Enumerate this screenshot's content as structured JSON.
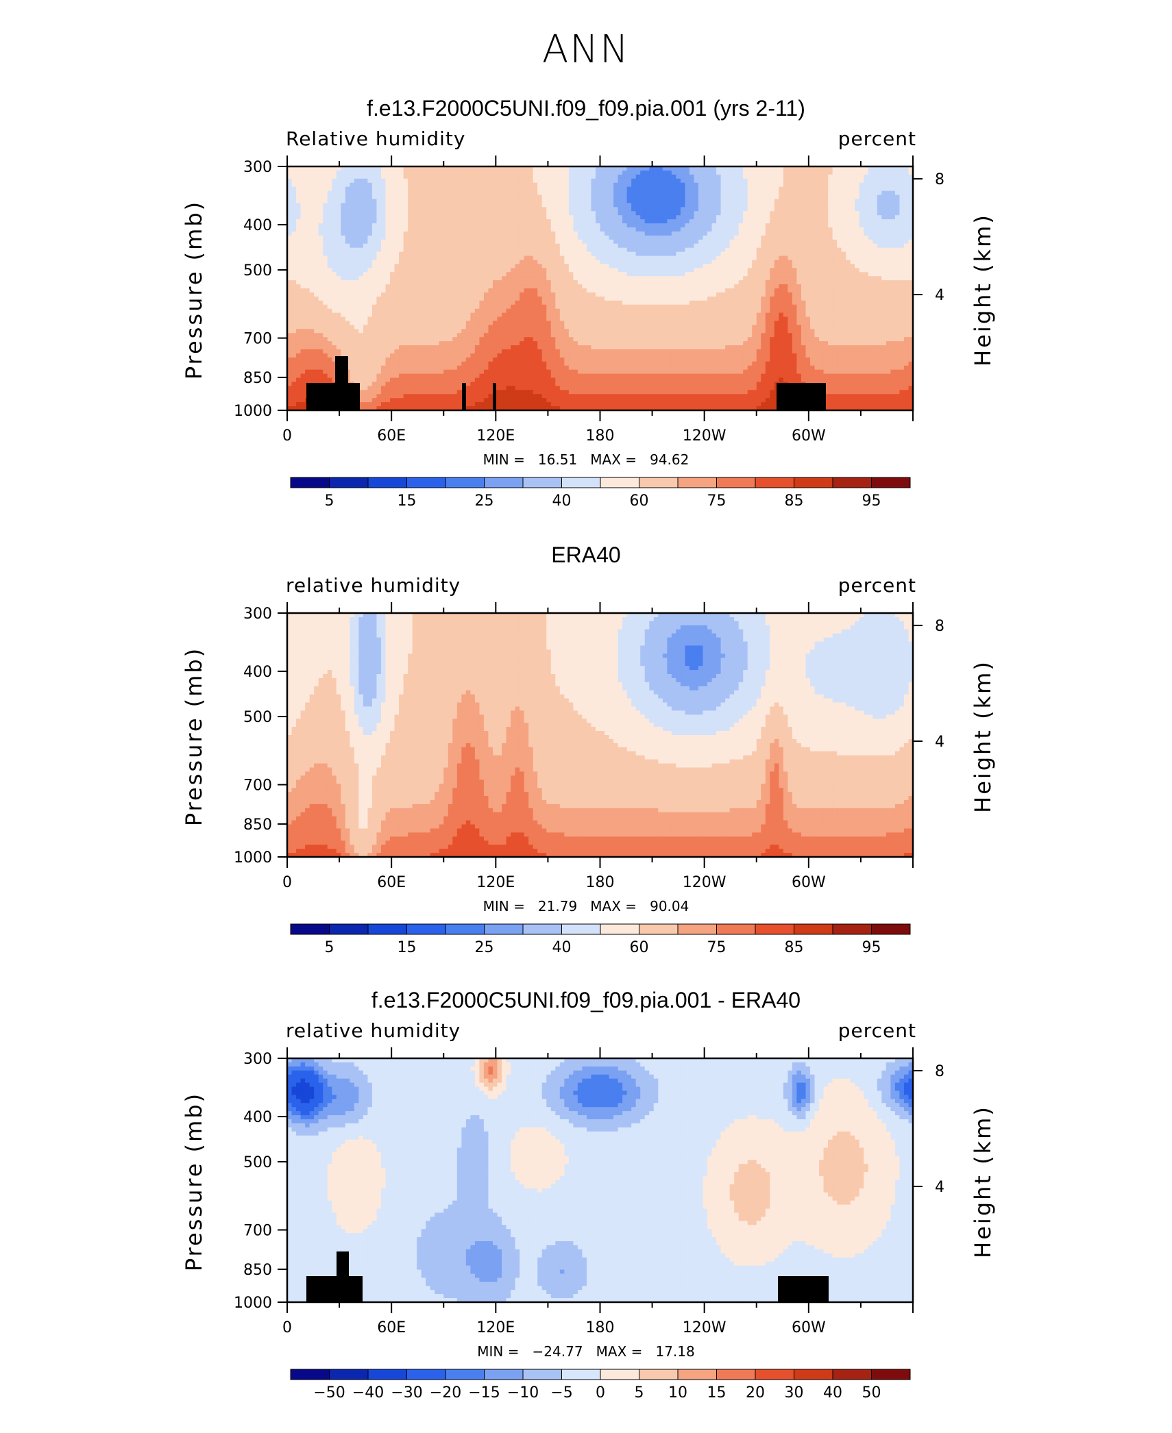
{
  "figure_title": "ANN",
  "chart_data": [
    {
      "type": "heatmap",
      "title": "f.e13.F2000C5UNI.f09_f09.pia.001 (yrs 2-11)",
      "variable_label": "Relative humidity",
      "units_label": "percent",
      "ylabel": "Pressure (mb)",
      "ylabel_right": "Height (km)",
      "x_ticks": [
        "0",
        "60E",
        "120E",
        "180",
        "120W",
        "60W"
      ],
      "y_ticks": [
        "300",
        "400",
        "500",
        "700",
        "850",
        "1000"
      ],
      "y_right_ticks": [
        "8",
        "4"
      ],
      "stats": {
        "min_label": "MIN =",
        "min": "16.51",
        "max_label": "MAX =",
        "max": "94.62"
      },
      "colorbar_labels": [
        "5",
        "15",
        "25",
        "40",
        "60",
        "75",
        "85",
        "95"
      ],
      "ylim": [
        1000,
        300
      ],
      "field_min": 16.51,
      "field_max": 94.62
    },
    {
      "type": "heatmap",
      "title": "ERA40",
      "variable_label": "relative humidity",
      "units_label": "percent",
      "ylabel": "Pressure (mb)",
      "ylabel_right": "Height (km)",
      "x_ticks": [
        "0",
        "60E",
        "120E",
        "180",
        "120W",
        "60W"
      ],
      "y_ticks": [
        "300",
        "400",
        "500",
        "700",
        "850",
        "1000"
      ],
      "y_right_ticks": [
        "8",
        "4"
      ],
      "stats": {
        "min_label": "MIN =",
        "min": "21.79",
        "max_label": "MAX =",
        "max": "90.04"
      },
      "colorbar_labels": [
        "5",
        "15",
        "25",
        "40",
        "60",
        "75",
        "85",
        "95"
      ],
      "ylim": [
        1000,
        300
      ],
      "field_min": 21.79,
      "field_max": 90.04
    },
    {
      "type": "heatmap",
      "title": "f.e13.F2000C5UNI.f09_f09.pia.001 - ERA40",
      "variable_label": "relative humidity",
      "units_label": "percent",
      "ylabel": "Pressure (mb)",
      "ylabel_right": "Height (km)",
      "x_ticks": [
        "0",
        "60E",
        "120E",
        "180",
        "120W",
        "60W"
      ],
      "y_ticks": [
        "300",
        "400",
        "500",
        "700",
        "850",
        "1000"
      ],
      "y_right_ticks": [
        "8",
        "4"
      ],
      "stats": {
        "min_label": "MIN =",
        "min": "−24.77",
        "max_label": "MAX =",
        "max": "17.18"
      },
      "colorbar_labels": [
        "−50",
        "−40",
        "−30",
        "−20",
        "−15",
        "−10",
        "−5",
        "0",
        "5",
        "10",
        "15",
        "20",
        "30",
        "40",
        "50"
      ],
      "ylim": [
        1000,
        300
      ],
      "field_min": -24.77,
      "field_max": 17.18
    }
  ],
  "colors": {
    "palette": [
      "#08088a",
      "#0b27b0",
      "#1747d8",
      "#2b62ec",
      "#4a7ff0",
      "#7aa1f2",
      "#a9c2f6",
      "#d3e2f9",
      "#fde9dc",
      "#f9c9ad",
      "#f5a381",
      "#f07a55",
      "#e6502c",
      "#cf3a17",
      "#a62212",
      "#7f0c0c"
    ],
    "neutral_diff": "#d7e6fa",
    "topography": "#000000"
  }
}
